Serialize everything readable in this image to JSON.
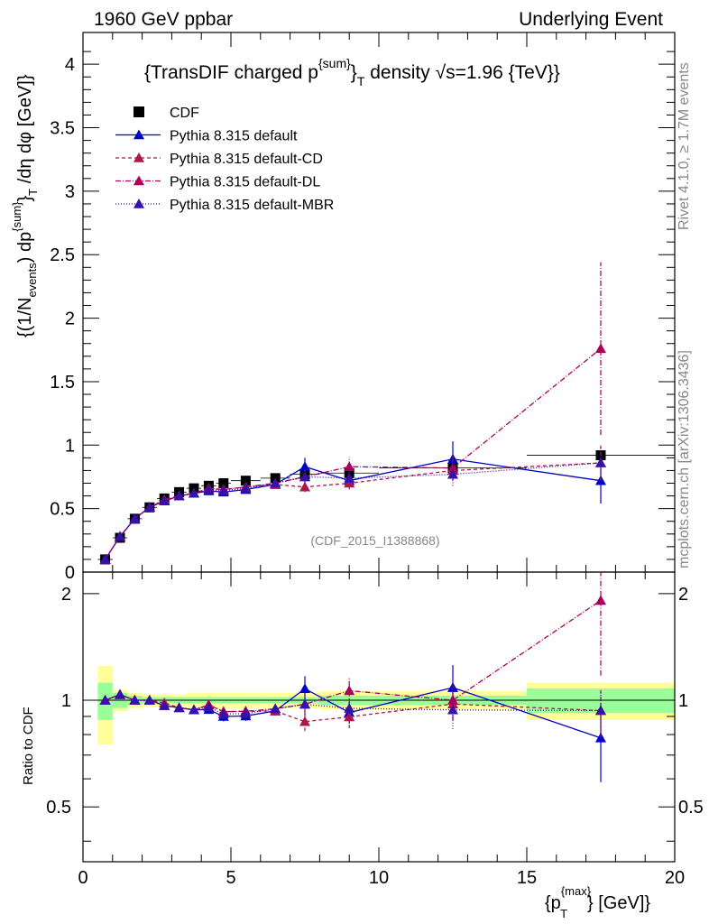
{
  "header": {
    "left": "1960 GeV ppbar",
    "right": "Underlying Event"
  },
  "side": {
    "rivet": "Rivet 4.1.0, ≥ 1.7M events",
    "mcplots": "mcplots.cern.ch [arXiv:1306.3436]"
  },
  "chart_data": {
    "type": "scatter",
    "title": "{TransDIF charged p^{sum}_T density √s=1.96 {TeV}}",
    "title_parts": {
      "a": "{TransDIF charged p",
      "sup": "{sum}",
      "b": "}",
      "sub": "T",
      "c": " density √s=1.96 {TeV}}"
    },
    "analysis_label": "(CDF_2015_I1388868)",
    "xlabel": "{p_T^{max}} [GeV]}",
    "xlabel_parts": {
      "a": "{p",
      "sup": "{max}",
      "sub": "T",
      "b": "} [GeV]}"
    },
    "ylabel": "{(1/N_events) dp^{sum}_T /dη dφ [GeV]}",
    "ylabel_parts": {
      "a": "{(1/N",
      "sub1": "events",
      "b": ") dp",
      "sup": "{sum}",
      "c": "}",
      "sub2": "T",
      "d": " /dη  dφ [GeV]}"
    },
    "ratio_ylabel": "Ratio to CDF",
    "xlim": [
      0,
      20
    ],
    "ylim": [
      0,
      4.25
    ],
    "ratio_ylim": [
      0.35,
      2.3
    ],
    "x_ticks": [
      0,
      5,
      10,
      15,
      20
    ],
    "x_tick_labels": [
      "0",
      "5",
      "10",
      "15",
      "20"
    ],
    "y_ticks": [
      0,
      0.5,
      1,
      1.5,
      2,
      2.5,
      3,
      3.5,
      4
    ],
    "y_tick_labels": [
      "0",
      "0.5",
      "1",
      "1.5",
      "2",
      "2.5",
      "3",
      "3.5",
      "4"
    ],
    "ratio_ticks": [
      0.5,
      1,
      2
    ],
    "ratio_tick_labels": [
      "0.5",
      "1",
      "2"
    ],
    "data": {
      "name": "CDF",
      "x": [
        0.75,
        1.25,
        1.75,
        2.25,
        2.75,
        3.25,
        3.75,
        4.25,
        4.75,
        5.5,
        6.5,
        7.5,
        9.0,
        12.5,
        17.5
      ],
      "y": [
        0.1,
        0.27,
        0.42,
        0.51,
        0.58,
        0.63,
        0.66,
        0.68,
        0.7,
        0.72,
        0.74,
        0.77,
        0.78,
        0.82,
        0.92
      ],
      "x_lo": [
        0.5,
        1.0,
        1.5,
        2.0,
        2.5,
        3.0,
        3.5,
        4.0,
        4.5,
        5.0,
        6.0,
        7.0,
        8.0,
        10.0,
        15.0
      ],
      "x_hi": [
        1.0,
        1.5,
        2.0,
        2.5,
        3.0,
        3.5,
        4.0,
        4.5,
        5.0,
        6.0,
        7.0,
        8.0,
        10.0,
        15.0,
        20.0
      ],
      "band_inner": [
        0.12,
        0.05,
        0.03,
        0.02,
        0.02,
        0.02,
        0.02,
        0.02,
        0.02,
        0.02,
        0.02,
        0.02,
        0.03,
        0.03,
        0.08
      ],
      "band_outer": [
        0.25,
        0.07,
        0.05,
        0.04,
        0.04,
        0.04,
        0.05,
        0.05,
        0.05,
        0.05,
        0.05,
        0.05,
        0.06,
        0.06,
        0.12
      ]
    },
    "series": [
      {
        "name": "Pythia 8.315 default",
        "color": "#0000cc",
        "dash": "solid",
        "x": [
          0.75,
          1.25,
          1.75,
          2.25,
          2.75,
          3.25,
          3.75,
          4.25,
          4.75,
          5.5,
          6.5,
          7.5,
          9.0,
          12.5,
          17.5
        ],
        "y": [
          0.1,
          0.28,
          0.42,
          0.51,
          0.56,
          0.6,
          0.62,
          0.64,
          0.63,
          0.65,
          0.69,
          0.83,
          0.72,
          0.89,
          0.72
        ],
        "err": [
          0,
          0,
          0,
          0,
          0,
          0,
          0,
          0,
          0.02,
          0.02,
          0.02,
          0.07,
          0.05,
          0.14,
          0.18
        ]
      },
      {
        "name": "Pythia 8.315 default-CD",
        "color": "#b0154b",
        "dash": "4,3",
        "x": [
          0.75,
          1.25,
          1.75,
          2.25,
          2.75,
          3.25,
          3.75,
          4.25,
          4.75,
          5.5,
          6.5,
          7.5,
          9.0,
          12.5,
          17.5
        ],
        "y": [
          0.1,
          0.28,
          0.42,
          0.51,
          0.57,
          0.6,
          0.62,
          0.66,
          0.65,
          0.67,
          0.69,
          0.67,
          0.7,
          0.8,
          0.86
        ],
        "err": [
          0,
          0,
          0,
          0,
          0,
          0,
          0,
          0,
          0.02,
          0.02,
          0.02,
          0.04,
          0.05,
          0.08,
          0.14
        ]
      },
      {
        "name": "Pythia 8.315 default-DL",
        "color": "#a8005a",
        "dash": "6,2,1,2",
        "x": [
          0.75,
          1.25,
          1.75,
          2.25,
          2.75,
          3.25,
          3.75,
          4.25,
          4.75,
          5.5,
          6.5,
          7.5,
          9.0,
          12.5,
          17.5
        ],
        "y": [
          0.1,
          0.28,
          0.42,
          0.51,
          0.56,
          0.6,
          0.62,
          0.66,
          0.65,
          0.67,
          0.7,
          0.75,
          0.83,
          0.82,
          1.76
        ],
        "err": [
          0,
          0,
          0,
          0,
          0,
          0,
          0,
          0,
          0.02,
          0.02,
          0.02,
          0.05,
          0.08,
          0.1,
          0.68
        ]
      },
      {
        "name": "Pythia 8.315 default-MBR",
        "color": "#3311aa",
        "dash": "1,2",
        "x": [
          0.75,
          1.25,
          1.75,
          2.25,
          2.75,
          3.25,
          3.75,
          4.25,
          4.75,
          5.5,
          6.5,
          7.5,
          9.0,
          12.5,
          17.5
        ],
        "y": [
          0.1,
          0.28,
          0.42,
          0.51,
          0.56,
          0.6,
          0.62,
          0.65,
          0.64,
          0.66,
          0.7,
          0.75,
          0.74,
          0.77,
          0.86
        ],
        "err": [
          0,
          0,
          0,
          0,
          0,
          0,
          0,
          0,
          0.02,
          0.02,
          0.02,
          0.05,
          0.05,
          0.09,
          0.12
        ]
      }
    ],
    "legend": [
      "CDF",
      "Pythia 8.315 default",
      "Pythia 8.315 default-CD",
      "Pythia 8.315 default-DL",
      "Pythia 8.315 default-MBR"
    ],
    "legend_position": "top-left"
  }
}
